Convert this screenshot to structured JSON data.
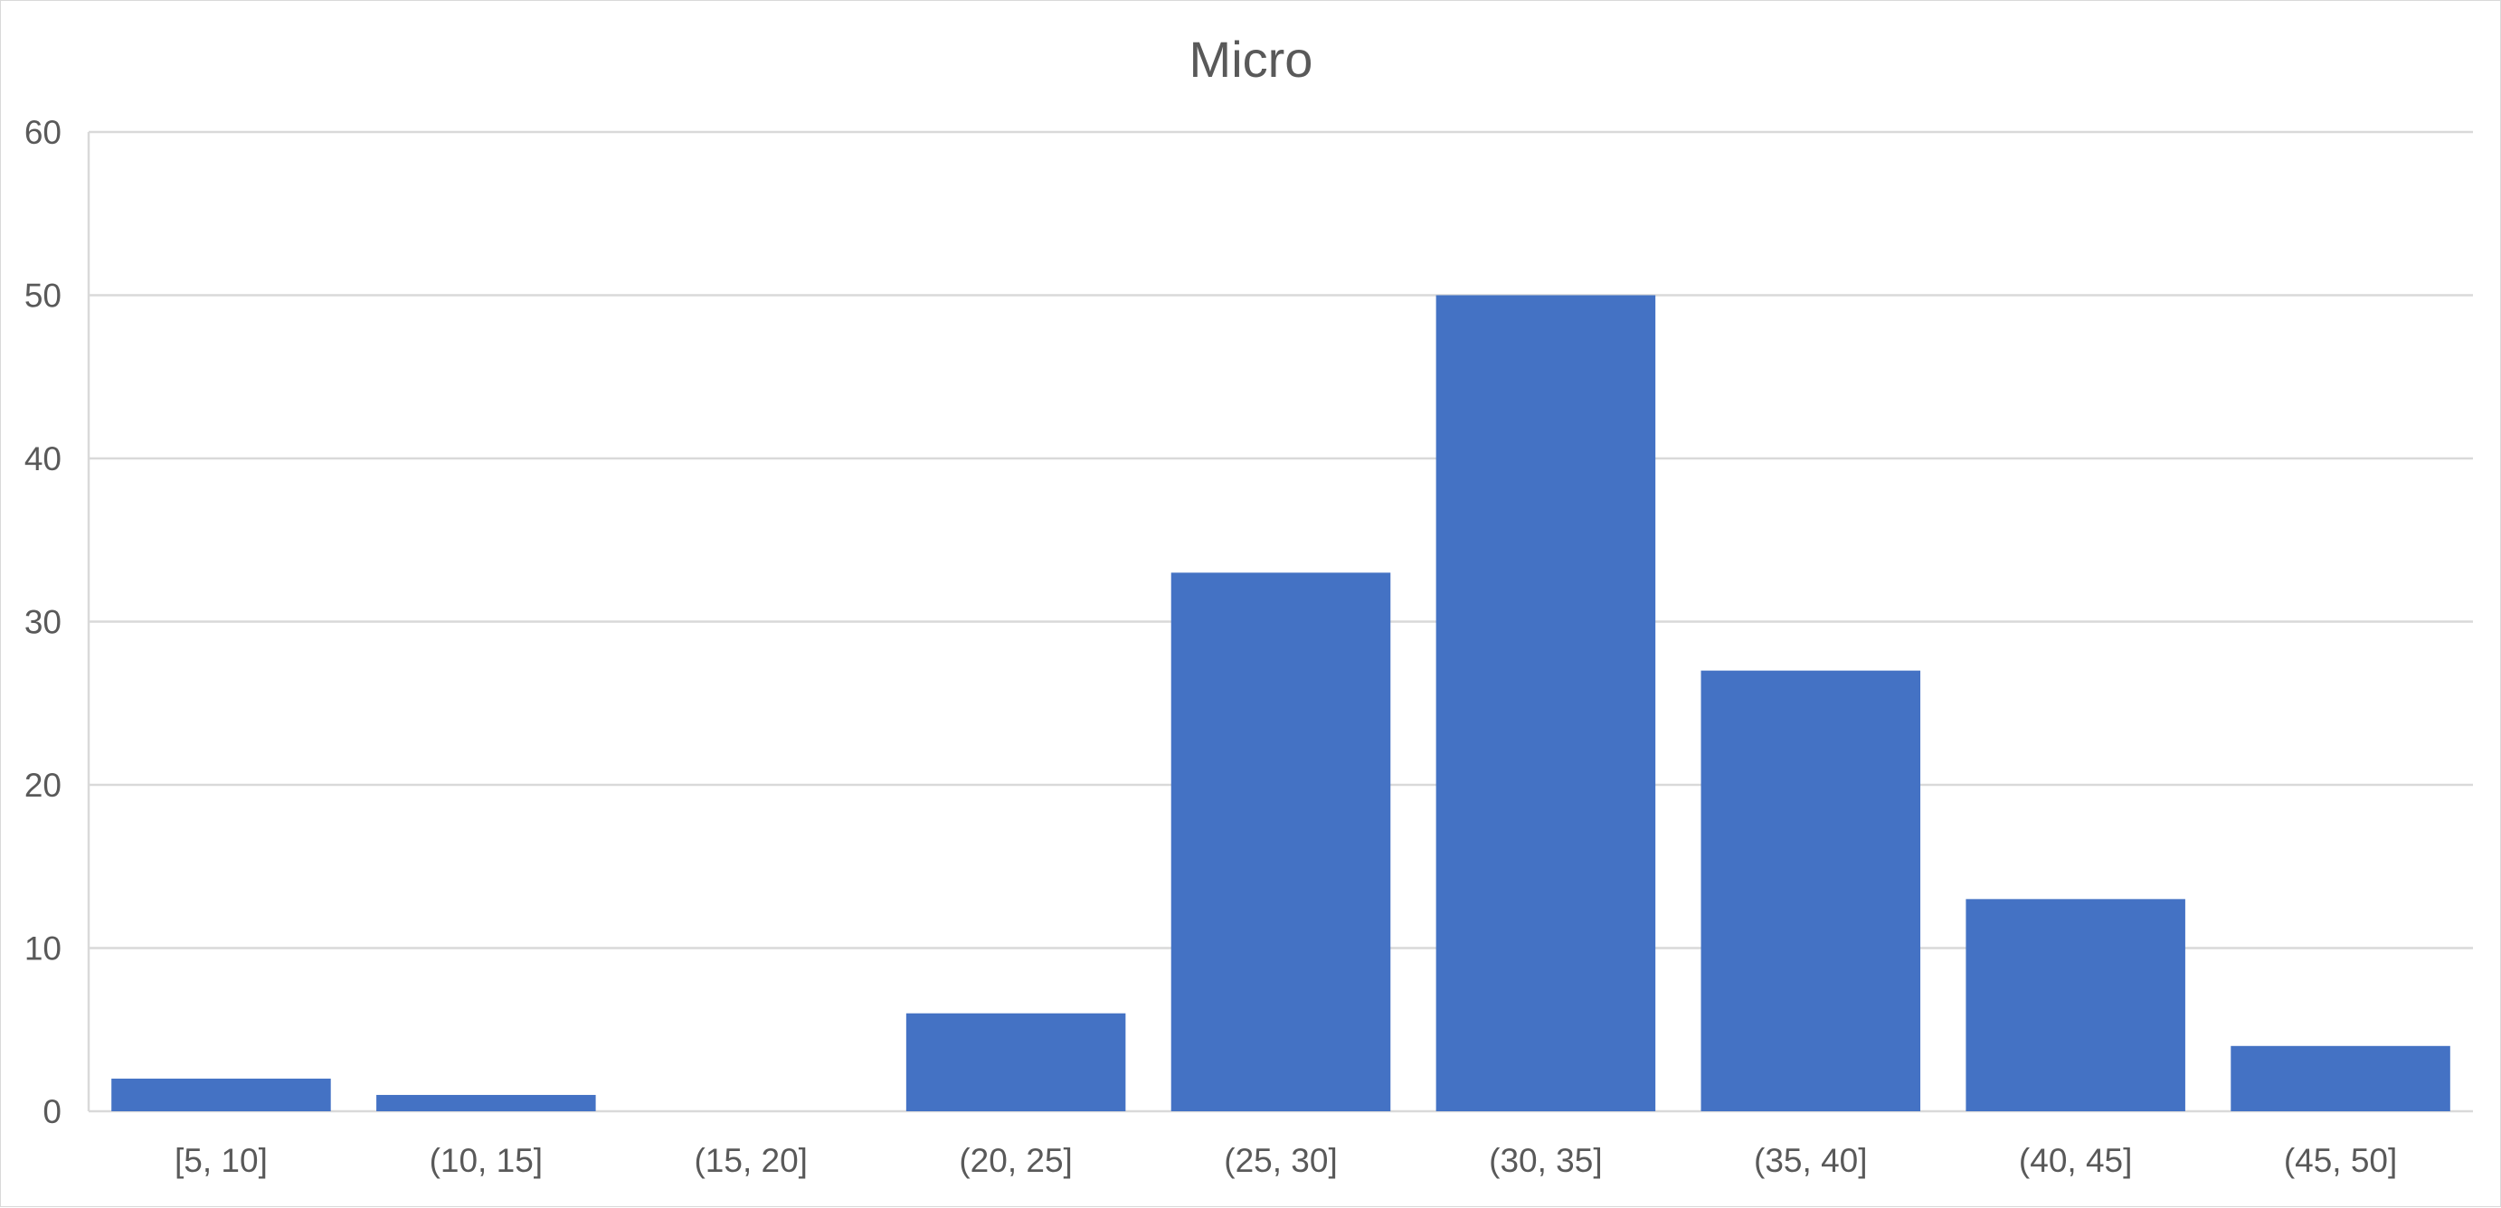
{
  "chart_data": {
    "type": "bar",
    "title": "Micro",
    "xlabel": "",
    "ylabel": "",
    "categories": [
      "[5, 10]",
      "(10, 15]",
      "(15, 20]",
      "(20, 25]",
      "(25, 30]",
      "(30, 35]",
      "(35, 40]",
      "(40, 45]",
      "(45, 50]"
    ],
    "values": [
      2,
      1,
      0,
      6,
      33,
      50,
      27,
      13,
      4
    ],
    "ylim": [
      0,
      60
    ],
    "yticks": [
      0,
      10,
      20,
      30,
      40,
      50,
      60
    ],
    "grid": true,
    "legend": "none",
    "bar_color": "#4472C4",
    "grid_color": "#d9d9d9",
    "text_color": "#595959"
  }
}
